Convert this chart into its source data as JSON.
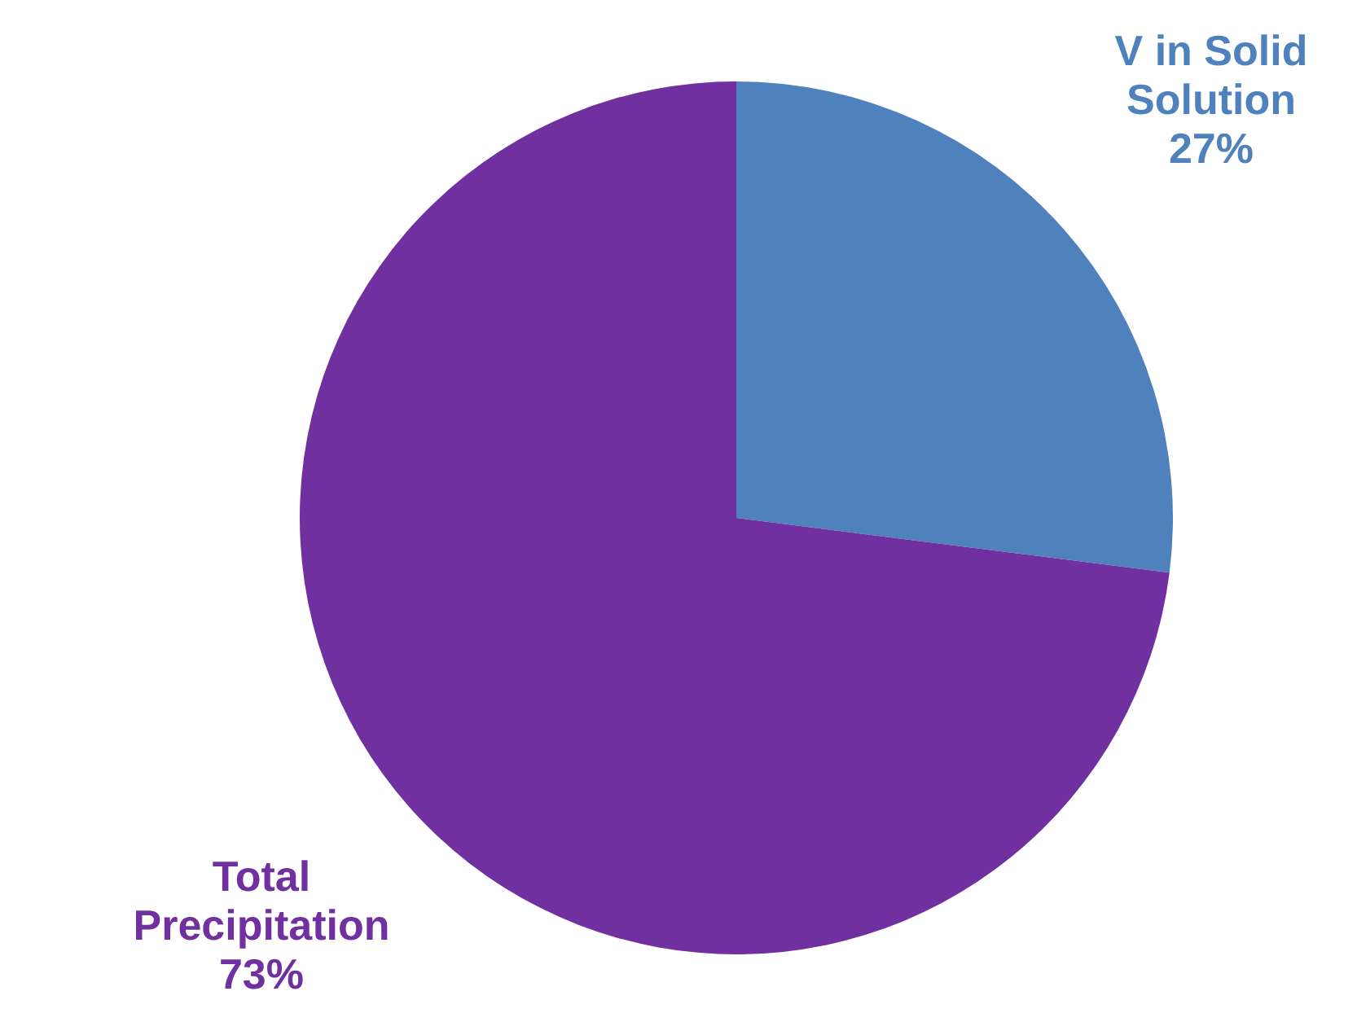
{
  "chart_data": {
    "type": "pie",
    "categories": [
      "V in Solid Solution",
      "Total Precipitation"
    ],
    "values": [
      27,
      73
    ],
    "colors": [
      "#4f81bd",
      "#7030a0"
    ],
    "value_labels": [
      "27%",
      "73%"
    ]
  }
}
